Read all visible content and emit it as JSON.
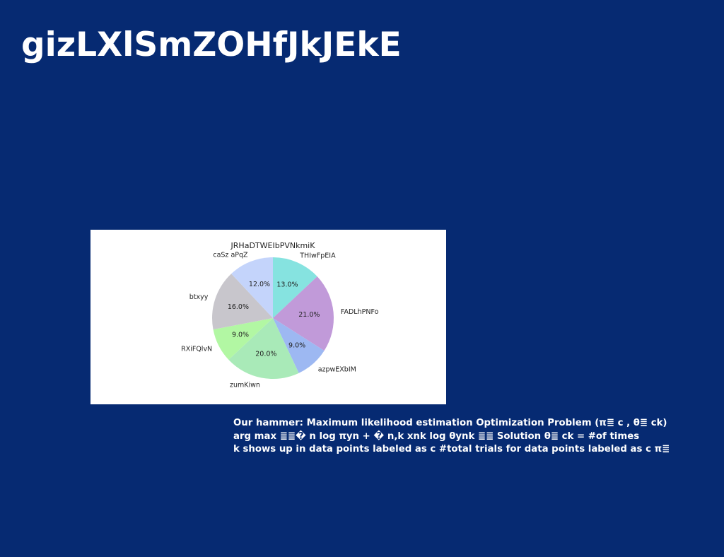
{
  "slide": {
    "title": "gizLXlSmZOHfJkJEkE",
    "body_lines": [
      "Our hammer: Maximum likelihood estimation Optimization Problem (π≣ c , θ≣ ck)",
      "arg max ≣≣� n log πyn + � n,k xnk log θynk ≣≣ Solution θ≣ ck = #of times",
      "k shows up in data points labeled as c #total trials for data points labeled as c π≣"
    ]
  },
  "chart_data": {
    "type": "pie",
    "title": "JRHaDTWEIbPVNkmiK",
    "start_angle_deg": 90,
    "direction": "clockwise",
    "slices": [
      {
        "label": "THIwFpEIA",
        "value": 13.0,
        "pct_label": "13.0%",
        "color": "#86e3e0"
      },
      {
        "label": "FADLhPNFo",
        "value": 21.0,
        "pct_label": "21.0%",
        "color": "#c19ad9"
      },
      {
        "label": "azpwEXbIM",
        "value": 9.0,
        "pct_label": "9.0%",
        "color": "#9db8f2"
      },
      {
        "label": "zumKiwn",
        "value": 20.0,
        "pct_label": "20.0%",
        "color": "#a9eab8"
      },
      {
        "label": "RXiFQlvN",
        "value": 9.0,
        "pct_label": "9.0%",
        "color": "#b2f7a3"
      },
      {
        "label": "btxyy",
        "value": 16.0,
        "pct_label": "16.0%",
        "color": "#c8c6cc"
      },
      {
        "label": "caSz aPqZ",
        "value": 12.0,
        "pct_label": "12.0%",
        "color": "#c4d4fb"
      }
    ]
  }
}
